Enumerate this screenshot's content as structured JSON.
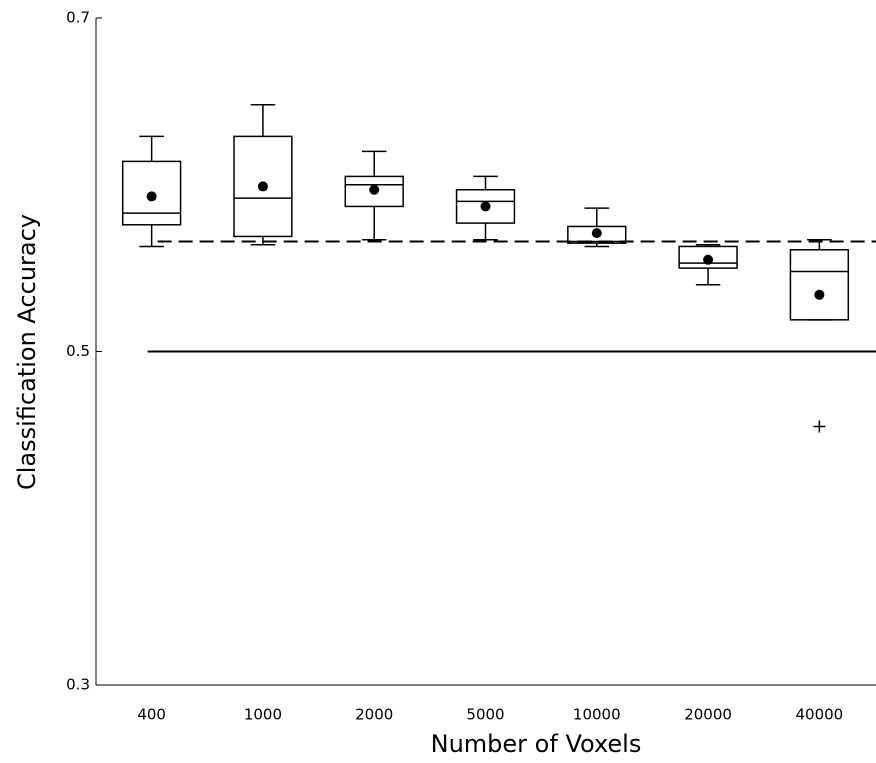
{
  "chart_data": {
    "type": "box",
    "x_label": "Number of Voxels",
    "y_label": "Classification Accuracy",
    "categories": [
      "400",
      "1000",
      "2000",
      "5000",
      "10000",
      "20000",
      "40000"
    ],
    "whisker_high": [
      0.629,
      0.648,
      0.62,
      0.605,
      0.586,
      0.564,
      0.567
    ],
    "q3": [
      0.614,
      0.629,
      0.605,
      0.597,
      0.575,
      0.563,
      0.561
    ],
    "median": [
      0.583,
      0.592,
      0.6,
      0.59,
      0.566,
      0.553,
      0.548
    ],
    "q1": [
      0.576,
      0.569,
      0.587,
      0.577,
      0.565,
      0.55,
      0.519
    ],
    "whisker_low": [
      0.563,
      0.564,
      0.567,
      0.567,
      0.563,
      0.54,
      0.519
    ],
    "mean": [
      0.593,
      0.599,
      0.597,
      0.587,
      0.571,
      0.555,
      0.534
    ],
    "outliers": [
      null,
      null,
      null,
      null,
      null,
      null,
      0.455
    ],
    "reference_lines": [
      {
        "value": 0.566,
        "style": "dashed"
      },
      {
        "value": 0.5,
        "style": "solid"
      }
    ],
    "ylim": [
      0.3,
      0.7
    ],
    "yticks": [
      0.3,
      0.5,
      0.7
    ],
    "color": "#000000"
  }
}
